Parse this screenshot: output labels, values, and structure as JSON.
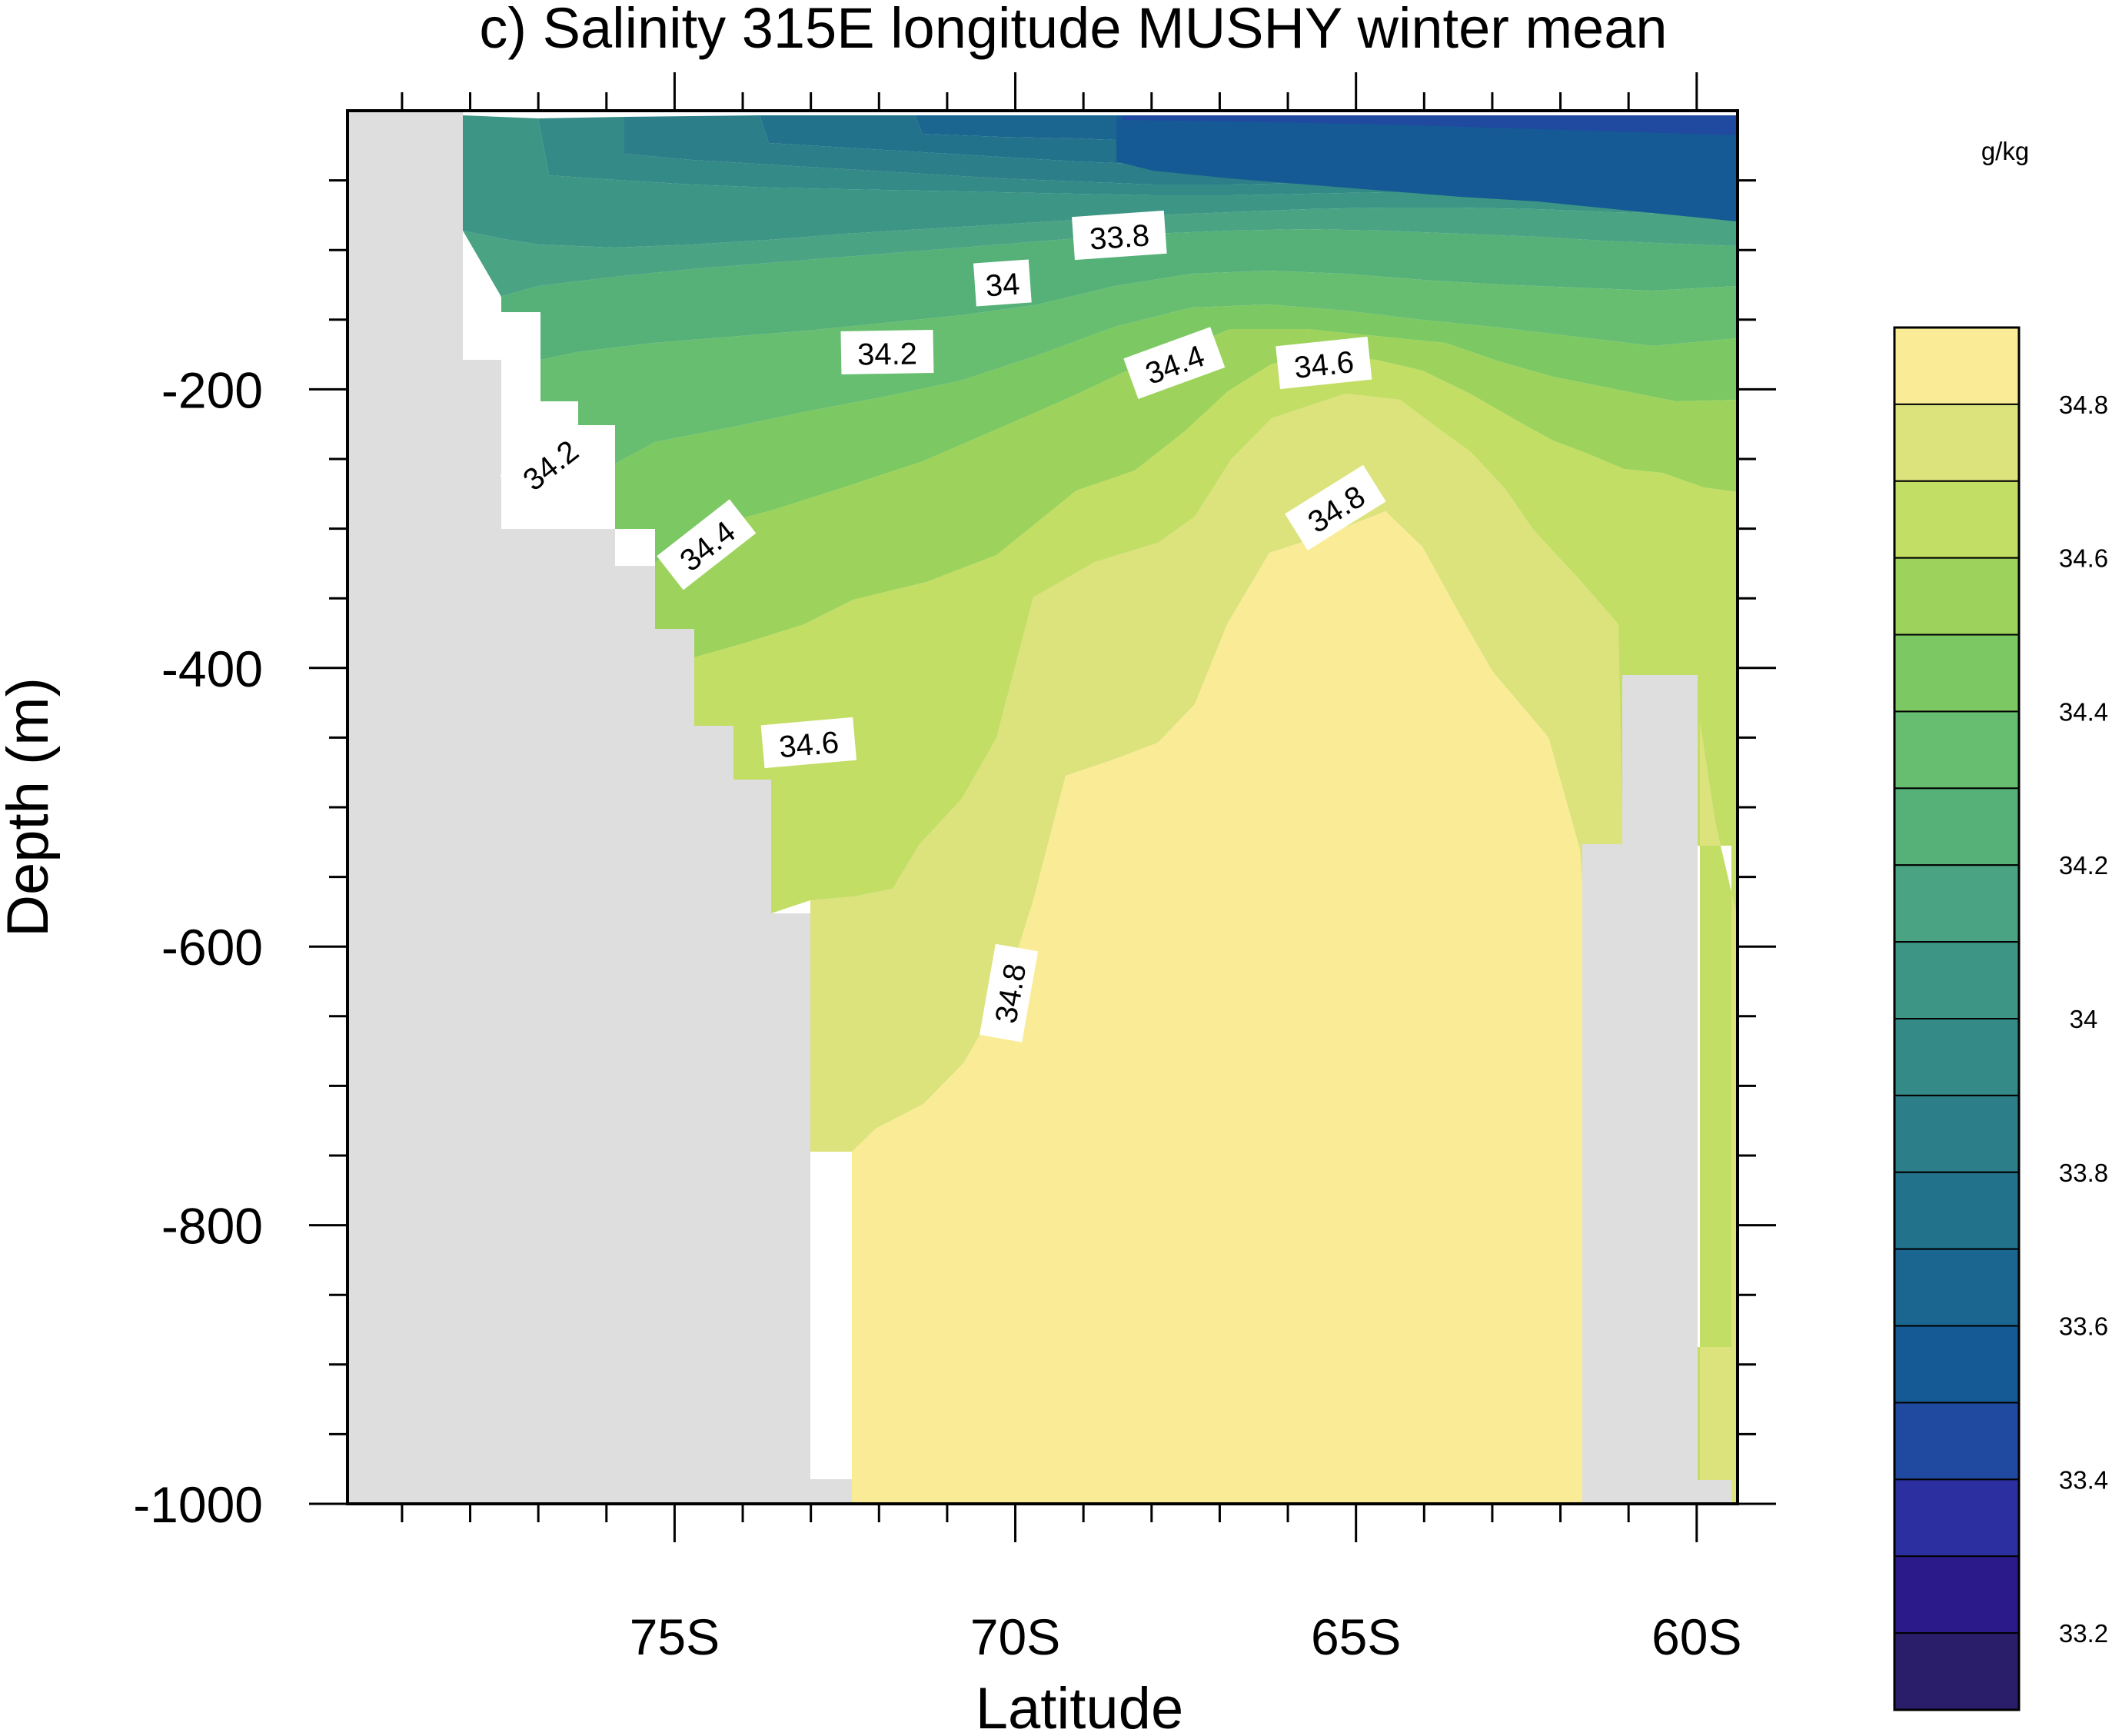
{
  "chart_data": {
    "type": "contour",
    "title": "c) Salinity 315E longitude MUSHY winter mean",
    "xlabel": "Latitude",
    "ylabel": "Depth (m)",
    "xlim": [
      -79.8,
      -59.4
    ],
    "ylim": [
      -1000,
      0
    ],
    "xticks": [
      {
        "value": -75,
        "label": "75S"
      },
      {
        "value": -70,
        "label": "70S"
      },
      {
        "value": -65,
        "label": "65S"
      },
      {
        "value": -60,
        "label": "60S"
      }
    ],
    "yticks": [
      {
        "value": -200,
        "label": "-200"
      },
      {
        "value": -400,
        "label": "-400"
      },
      {
        "value": -600,
        "label": "-600"
      },
      {
        "value": -800,
        "label": "-800"
      },
      {
        "value": -1000,
        "label": "-1000"
      }
    ],
    "units": "g/kg",
    "colorbar": {
      "levels": [
        33.1,
        33.2,
        33.3,
        33.4,
        33.5,
        33.6,
        33.7,
        33.8,
        33.9,
        34.0,
        34.1,
        34.2,
        34.3,
        34.4,
        34.5,
        34.6,
        34.7,
        34.8,
        34.9
      ],
      "colors": [
        "#2a1e6a",
        "#2b1a8a",
        "#2b2fa0",
        "#1f4aa0",
        "#155a95",
        "#1a6690",
        "#23728c",
        "#2c7e88",
        "#348a86",
        "#3d9685",
        "#4aa382",
        "#55b178",
        "#68be70",
        "#7cc862",
        "#9dd35c",
        "#c3de65",
        "#dce37c",
        "#faec97"
      ],
      "labels": [
        {
          "value": 33.2,
          "label": "33.2"
        },
        {
          "value": 33.4,
          "label": "33.4"
        },
        {
          "value": 33.6,
          "label": "33.6"
        },
        {
          "value": 33.8,
          "label": "33.8"
        },
        {
          "value": 34.0,
          "label": "34"
        },
        {
          "value": 34.2,
          "label": "34.2"
        },
        {
          "value": 34.4,
          "label": "34.4"
        },
        {
          "value": 34.6,
          "label": "34.6"
        },
        {
          "value": 34.8,
          "label": "34.8"
        }
      ]
    },
    "contour_labels": [
      "33.8",
      "34",
      "34.2",
      "34.4",
      "34.6",
      "34.2",
      "34.4",
      "34.6",
      "34.8",
      "34.8"
    ],
    "missing_color": "#dedede",
    "surface_salinity_range": [
      33.4,
      34.1
    ],
    "deep_salinity": 34.8
  }
}
